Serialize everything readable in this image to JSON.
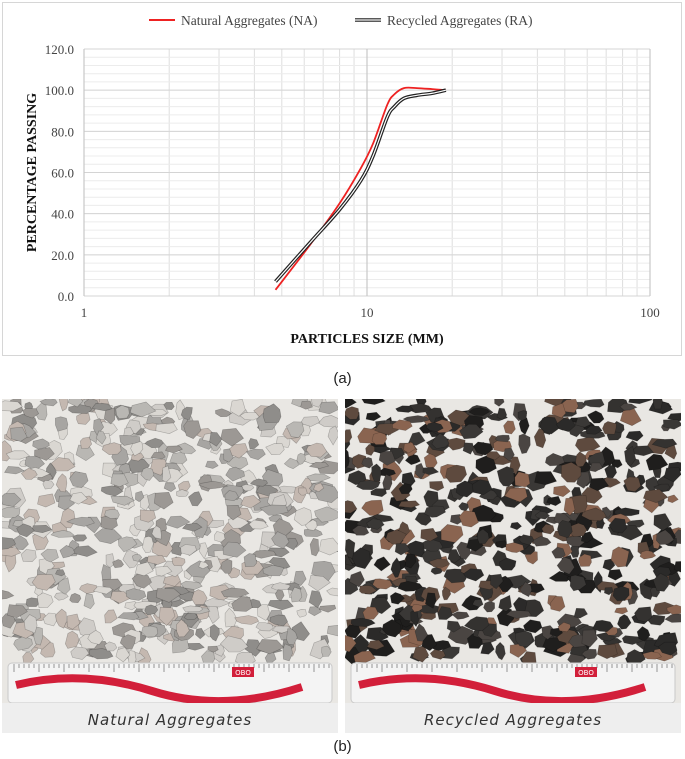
{
  "panel_a_label": "(a)",
  "panel_b_label": "(b)",
  "colors": {
    "na": "#ee2222",
    "ra": "#222222",
    "grid": "#dedede",
    "axis": "#bfbfbf"
  },
  "chart_data": {
    "type": "line",
    "xscale": "log",
    "xlabel": "PARTICLES SIZE (MM)",
    "ylabel": "PERCENTAGE PASSING",
    "xlim": [
      1,
      100
    ],
    "ylim": [
      0,
      120
    ],
    "x_ticks": [
      "1",
      "10",
      "100"
    ],
    "y_ticks": [
      "0.0",
      "20.0",
      "40.0",
      "60.0",
      "80.0",
      "100.0",
      "120.0"
    ],
    "grid": true,
    "legend_position": "top",
    "series": [
      {
        "name": "Natural Aggregates (NA)",
        "color": "#ee2222",
        "x": [
          4.75,
          6.3,
          8.0,
          9.5,
          10.5,
          11.8,
          12.5,
          13.5,
          15.0,
          17.0,
          19.0
        ],
        "y": [
          3,
          25,
          45,
          62,
          74,
          93,
          98,
          101,
          101,
          100.5,
          100
        ]
      },
      {
        "name": "Recycled Aggregates (RA)",
        "color": "#222222",
        "x": [
          4.75,
          6.3,
          8.0,
          9.5,
          10.5,
          11.8,
          12.5,
          13.5,
          15.0,
          17.0,
          19.0
        ],
        "y": [
          7,
          26,
          42,
          56,
          68,
          87,
          92,
          96,
          97.5,
          98.5,
          100
        ]
      }
    ]
  },
  "photos": {
    "left_caption": "Natural Aggregates",
    "right_caption": "Recycled Aggregates",
    "ruler_logo": "OBO"
  }
}
